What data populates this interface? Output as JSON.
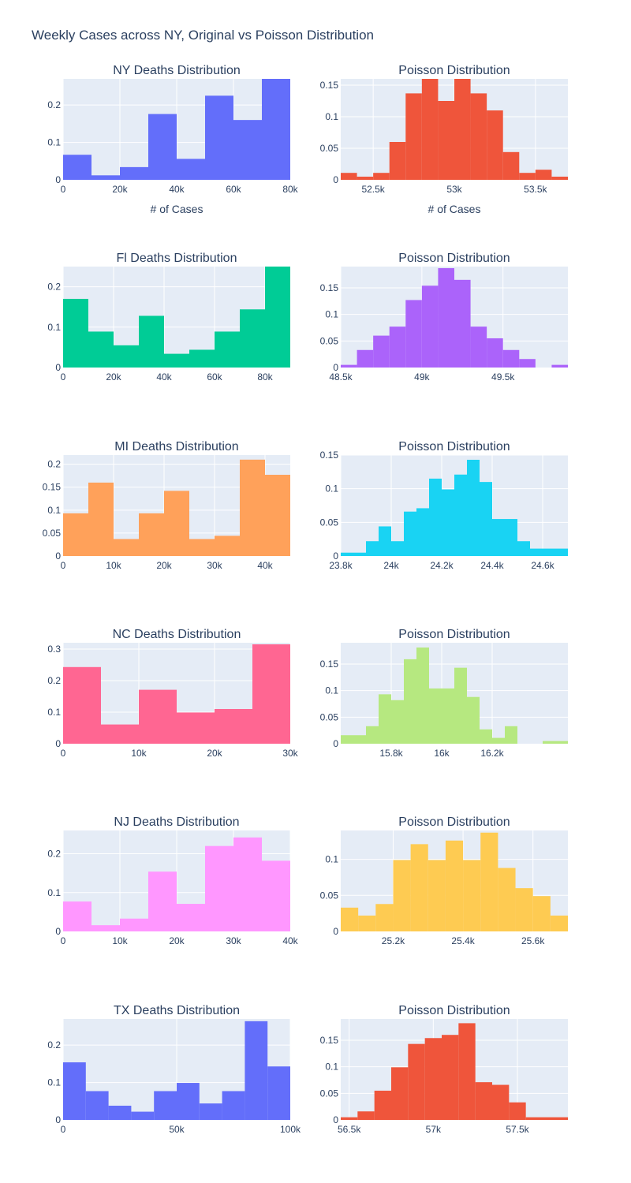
{
  "title": "Weekly Cases across NY, Original vs Poisson Distribution",
  "chart_data": [
    {
      "type": "bar",
      "panel": "NY-original",
      "title": "NY Deaths Distribution",
      "xlabel": "# of Cases",
      "color": "#636efa",
      "xlim": [
        0,
        80000
      ],
      "ylim": [
        0,
        0.27
      ],
      "bin_edges": [
        0,
        10000,
        20000,
        30000,
        40000,
        50000,
        60000,
        70000,
        80000
      ],
      "values": [
        0.067,
        0.012,
        0.034,
        0.176,
        0.056,
        0.225,
        0.16,
        0.27
      ],
      "xticks": [
        0,
        20000,
        40000,
        60000,
        80000
      ],
      "xtick_labels": [
        "0",
        "20k",
        "40k",
        "60k",
        "80k"
      ],
      "yticks": [
        0,
        0.1,
        0.2
      ],
      "ytick_labels": [
        "0",
        "0.1",
        "0.2"
      ]
    },
    {
      "type": "bar",
      "panel": "NY-poisson",
      "title": "Poisson Distribution",
      "xlabel": "# of Cases",
      "color": "#ef553b",
      "xlim": [
        52300,
        53700
      ],
      "ylim": [
        0,
        0.16
      ],
      "bin_edges": [
        52300,
        52400,
        52500,
        52600,
        52700,
        52800,
        52900,
        53000,
        53100,
        53200,
        53300,
        53400,
        53500,
        53600,
        53700
      ],
      "values": [
        0.011,
        0.005,
        0.011,
        0.06,
        0.137,
        0.16,
        0.125,
        0.16,
        0.137,
        0.11,
        0.044,
        0.011,
        0.016,
        0.005
      ],
      "xticks": [
        52500,
        53000,
        53500
      ],
      "xtick_labels": [
        "52.5k",
        "53k",
        "53.5k"
      ],
      "yticks": [
        0,
        0.05,
        0.1,
        0.15
      ],
      "ytick_labels": [
        "0",
        "0.05",
        "0.1",
        "0.15"
      ]
    },
    {
      "type": "bar",
      "panel": "FL-original",
      "title": "Fl Deaths Distribution",
      "xlabel": "",
      "color": "#00cc96",
      "xlim": [
        0,
        90000
      ],
      "ylim": [
        0,
        0.25
      ],
      "bin_edges": [
        0,
        10000,
        20000,
        30000,
        40000,
        50000,
        60000,
        70000,
        80000,
        90000
      ],
      "values": [
        0.17,
        0.089,
        0.055,
        0.128,
        0.034,
        0.044,
        0.089,
        0.144,
        0.25
      ],
      "xticks": [
        0,
        20000,
        40000,
        60000,
        80000
      ],
      "xtick_labels": [
        "0",
        "20k",
        "40k",
        "60k",
        "80k"
      ],
      "yticks": [
        0,
        0.1,
        0.2
      ],
      "ytick_labels": [
        "0",
        "0.1",
        "0.2"
      ]
    },
    {
      "type": "bar",
      "panel": "FL-poisson",
      "title": "Poisson Distribution",
      "xlabel": "",
      "color": "#ab63fa",
      "xlim": [
        48500,
        49900
      ],
      "ylim": [
        0,
        0.19
      ],
      "bin_edges": [
        48500,
        48600,
        48700,
        48800,
        48900,
        49000,
        49100,
        49200,
        49300,
        49400,
        49500,
        49600,
        49700,
        49800,
        49900
      ],
      "values": [
        0.005,
        0.033,
        0.06,
        0.077,
        0.127,
        0.154,
        0.187,
        0.165,
        0.077,
        0.055,
        0.033,
        0.016,
        0,
        0.005
      ],
      "xticks": [
        48500,
        49000,
        49500
      ],
      "xtick_labels": [
        "48.5k",
        "49k",
        "49.5k"
      ],
      "yticks": [
        0,
        0.05,
        0.1,
        0.15
      ],
      "ytick_labels": [
        "0",
        "0.05",
        "0.1",
        "0.15"
      ]
    },
    {
      "type": "bar",
      "panel": "MI-original",
      "title": "MI Deaths Distribution",
      "xlabel": "",
      "color": "#ffa15a",
      "xlim": [
        0,
        45000
      ],
      "ylim": [
        0,
        0.22
      ],
      "bin_edges": [
        0,
        5000,
        10000,
        15000,
        20000,
        25000,
        30000,
        35000,
        40000,
        45000
      ],
      "values": [
        0.093,
        0.16,
        0.037,
        0.093,
        0.142,
        0.037,
        0.044,
        0.21,
        0.177
      ],
      "xticks": [
        0,
        10000,
        20000,
        30000,
        40000
      ],
      "xtick_labels": [
        "0",
        "10k",
        "20k",
        "30k",
        "40k"
      ],
      "yticks": [
        0,
        0.05,
        0.1,
        0.15,
        0.2
      ],
      "ytick_labels": [
        "0",
        "0.05",
        "0.1",
        "0.15",
        "0.2"
      ]
    },
    {
      "type": "bar",
      "panel": "MI-poisson",
      "title": "Poisson Distribution",
      "xlabel": "",
      "color": "#19d3f3",
      "xlim": [
        23800,
        24700
      ],
      "ylim": [
        0,
        0.15
      ],
      "bin_edges": [
        23800,
        23850,
        23900,
        23950,
        24000,
        24050,
        24100,
        24150,
        24200,
        24250,
        24300,
        24350,
        24400,
        24450,
        24500,
        24550,
        24600,
        24650,
        24700
      ],
      "values": [
        0.005,
        0.005,
        0.022,
        0.044,
        0.022,
        0.066,
        0.071,
        0.115,
        0.099,
        0.121,
        0.143,
        0.11,
        0.055,
        0.055,
        0.022,
        0.011,
        0.011,
        0.011
      ],
      "xticks": [
        23800,
        24000,
        24200,
        24400,
        24600
      ],
      "xtick_labels": [
        "23.8k",
        "24k",
        "24.2k",
        "24.4k",
        "24.6k"
      ],
      "yticks": [
        0,
        0.05,
        0.1,
        0.15
      ],
      "ytick_labels": [
        "0",
        "0.05",
        "0.1",
        "0.15"
      ]
    },
    {
      "type": "bar",
      "panel": "NC-original",
      "title": "NC Deaths Distribution",
      "xlabel": "",
      "color": "#ff6692",
      "xlim": [
        0,
        30000
      ],
      "ylim": [
        0,
        0.32
      ],
      "bin_edges": [
        0,
        5000,
        10000,
        15000,
        20000,
        25000,
        30000
      ],
      "values": [
        0.243,
        0.061,
        0.171,
        0.099,
        0.11,
        0.315
      ],
      "xticks": [
        0,
        10000,
        20000,
        30000
      ],
      "xtick_labels": [
        "0",
        "10k",
        "20k",
        "30k"
      ],
      "yticks": [
        0,
        0.1,
        0.2,
        0.3
      ],
      "ytick_labels": [
        "0",
        "0.1",
        "0.2",
        "0.3"
      ]
    },
    {
      "type": "bar",
      "panel": "NC-poisson",
      "title": "Poisson Distribution",
      "xlabel": "",
      "color": "#b6e880",
      "xlim": [
        15600,
        16500
      ],
      "ylim": [
        0,
        0.19
      ],
      "bin_edges": [
        15600,
        15650,
        15700,
        15750,
        15800,
        15850,
        15900,
        15950,
        16000,
        16050,
        16100,
        16150,
        16200,
        16250,
        16300,
        16350,
        16400,
        16450,
        16500
      ],
      "values": [
        0.016,
        0.016,
        0.033,
        0.093,
        0.082,
        0.159,
        0.181,
        0.104,
        0.104,
        0.143,
        0.088,
        0.027,
        0.011,
        0.033,
        0,
        0,
        0.005,
        0.005
      ],
      "xticks": [
        15800,
        16000,
        16200
      ],
      "xtick_labels": [
        "15.8k",
        "16k",
        "16.2k"
      ],
      "yticks": [
        0,
        0.05,
        0.1,
        0.15
      ],
      "ytick_labels": [
        "0",
        "0.05",
        "0.1",
        "0.15"
      ]
    },
    {
      "type": "bar",
      "panel": "NJ-original",
      "title": "NJ Deaths Distribution",
      "xlabel": "",
      "color": "#ff97ff",
      "xlim": [
        0,
        40000
      ],
      "ylim": [
        0,
        0.26
      ],
      "bin_edges": [
        0,
        5000,
        10000,
        15000,
        20000,
        25000,
        30000,
        35000,
        40000
      ],
      "values": [
        0.077,
        0.016,
        0.033,
        0.154,
        0.071,
        0.22,
        0.242,
        0.182
      ],
      "xticks": [
        0,
        10000,
        20000,
        30000,
        40000
      ],
      "xtick_labels": [
        "0",
        "10k",
        "20k",
        "30k",
        "40k"
      ],
      "yticks": [
        0,
        0.1,
        0.2
      ],
      "ytick_labels": [
        "0",
        "0.1",
        "0.2"
      ]
    },
    {
      "type": "bar",
      "panel": "NJ-poisson",
      "title": "Poisson Distribution",
      "xlabel": "",
      "color": "#fecb52",
      "xlim": [
        25050,
        25700
      ],
      "ylim": [
        0,
        0.14
      ],
      "bin_edges": [
        25050,
        25100,
        25150,
        25200,
        25250,
        25300,
        25350,
        25400,
        25450,
        25500,
        25550,
        25600,
        25650,
        25700
      ],
      "values": [
        0.033,
        0.022,
        0.038,
        0.099,
        0.121,
        0.099,
        0.126,
        0.099,
        0.137,
        0.088,
        0.06,
        0.049,
        0.022
      ],
      "xticks": [
        25200,
        25400,
        25600
      ],
      "xtick_labels": [
        "25.2k",
        "25.4k",
        "25.6k"
      ],
      "yticks": [
        0,
        0.05,
        0.1
      ],
      "ytick_labels": [
        "0",
        "0.05",
        "0.1"
      ]
    },
    {
      "type": "bar",
      "panel": "TX-original",
      "title": "TX Deaths Distribution",
      "xlabel": "",
      "color": "#636efa",
      "xlim": [
        0,
        100000
      ],
      "ylim": [
        0,
        0.27
      ],
      "bin_edges": [
        0,
        10000,
        20000,
        30000,
        40000,
        50000,
        60000,
        70000,
        80000,
        90000,
        100000
      ],
      "values": [
        0.154,
        0.077,
        0.038,
        0.022,
        0.077,
        0.099,
        0.044,
        0.077,
        0.264,
        0.143
      ],
      "xticks": [
        0,
        50000,
        100000
      ],
      "xtick_labels": [
        "0",
        "50k",
        "100k"
      ],
      "yticks": [
        0,
        0.1,
        0.2
      ],
      "ytick_labels": [
        "0",
        "0.1",
        "0.2"
      ]
    },
    {
      "type": "bar",
      "panel": "TX-poisson",
      "title": "Poisson Distribution",
      "xlabel": "",
      "color": "#ef553b",
      "xlim": [
        56450,
        57800
      ],
      "ylim": [
        0,
        0.19
      ],
      "bin_edges": [
        56450,
        56550,
        56650,
        56750,
        56850,
        56950,
        57050,
        57150,
        57250,
        57350,
        57450,
        57550,
        57650,
        57800
      ],
      "values": [
        0.005,
        0.016,
        0.055,
        0.099,
        0.143,
        0.154,
        0.16,
        0.182,
        0.071,
        0.066,
        0.033,
        0.005,
        0.005,
        0
      ],
      "xticks": [
        56500,
        57000,
        57500
      ],
      "xtick_labels": [
        "56.5k",
        "57k",
        "57.5k"
      ],
      "yticks": [
        0,
        0.05,
        0.1,
        0.15
      ],
      "ytick_labels": [
        "0",
        "0.05",
        "0.1",
        "0.15"
      ]
    }
  ]
}
